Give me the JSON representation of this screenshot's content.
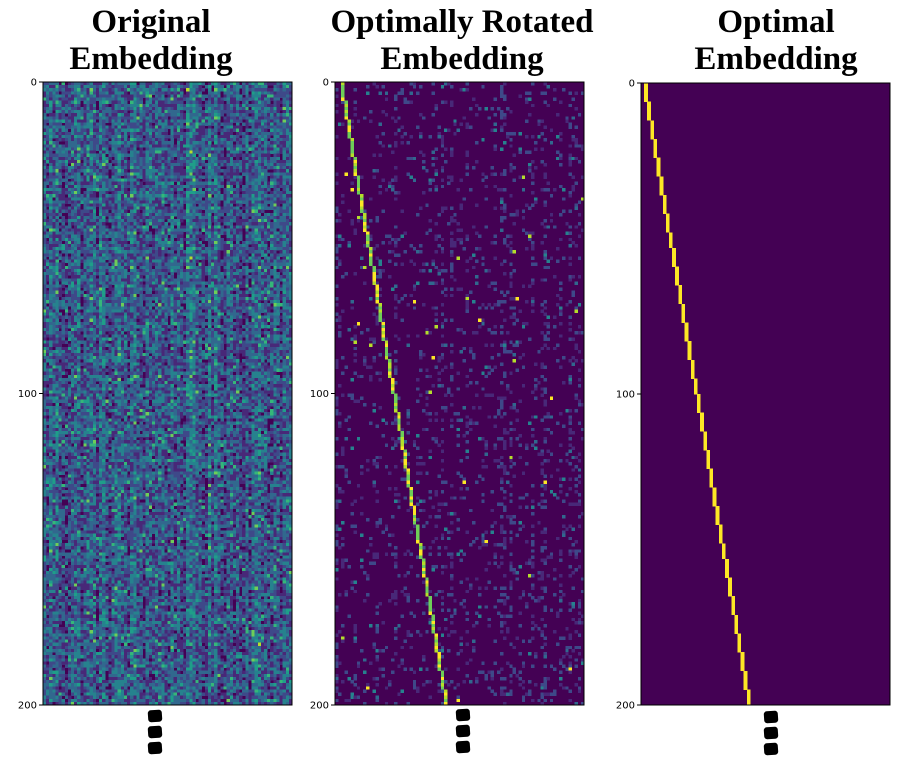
{
  "chart_data": [
    {
      "type": "heatmap",
      "title_lines": [
        "Original",
        "Embedding"
      ],
      "colormap": "viridis",
      "yticks": [
        0,
        100,
        200
      ],
      "ylim": [
        0,
        200
      ],
      "rows": 200,
      "cols": 80,
      "pattern": "dense-random",
      "continuation_marker": "vertical-ellipsis",
      "palette": [
        "#440154",
        "#482878",
        "#3e4989",
        "#31688e",
        "#26828e",
        "#1f9e89",
        "#35b779",
        "#6ece58",
        "#b5de2b",
        "#fde725"
      ]
    },
    {
      "type": "heatmap",
      "title_lines": [
        "Optimally Rotated",
        "Embedding"
      ],
      "colormap": "viridis",
      "yticks": [
        0,
        100,
        200
      ],
      "ylim": [
        0,
        200
      ],
      "rows": 200,
      "cols": 80,
      "pattern": "sparse-diagonal",
      "diagonal_end_col": 34,
      "continuation_marker": "vertical-ellipsis",
      "palette": [
        "#440154",
        "#482878",
        "#3e4989",
        "#31688e",
        "#26828e",
        "#1f9e89",
        "#35b779",
        "#6ece58",
        "#b5de2b",
        "#fde725"
      ]
    },
    {
      "type": "heatmap",
      "title_lines": [
        "Optimal",
        "Embedding"
      ],
      "colormap": "viridis",
      "yticks": [
        0,
        100,
        200
      ],
      "ylim": [
        0,
        200
      ],
      "rows": 200,
      "cols": 80,
      "pattern": "identity-diagonal",
      "diagonal_end_col": 34,
      "continuation_marker": "vertical-ellipsis",
      "palette": [
        "#440154",
        "#482878",
        "#3e4989",
        "#31688e",
        "#26828e",
        "#1f9e89",
        "#35b779",
        "#6ece58",
        "#b5de2b",
        "#fde725"
      ]
    }
  ]
}
